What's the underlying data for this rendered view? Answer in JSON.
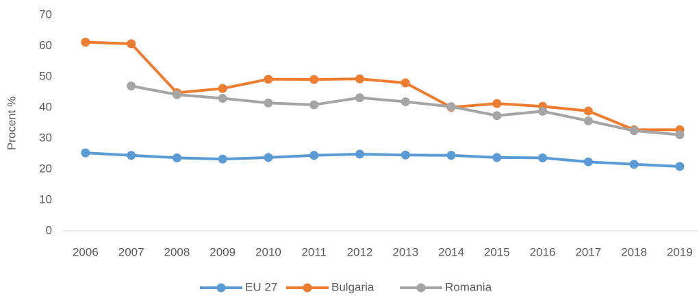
{
  "chart_data": {
    "type": "line",
    "ylabel": "Procent  %",
    "categories": [
      "2006",
      "2007",
      "2008",
      "2009",
      "2010",
      "2011",
      "2012",
      "2013",
      "2014",
      "2015",
      "2016",
      "2017",
      "2018",
      "2019"
    ],
    "series": [
      {
        "name": "EU 27",
        "color": "#5b9bd5",
        "values": [
          25.3,
          24.5,
          23.7,
          23.3,
          23.8,
          24.5,
          24.9,
          24.6,
          24.5,
          23.8,
          23.7,
          22.4,
          21.6,
          20.9
        ]
      },
      {
        "name": "Bulgaria",
        "color": "#ed7d31",
        "values": [
          61.2,
          60.7,
          44.8,
          46.2,
          49.2,
          49.1,
          49.3,
          48.0,
          40.1,
          41.3,
          40.4,
          38.9,
          32.8,
          32.8
        ]
      },
      {
        "name": "Romania",
        "color": "#a5a5a5",
        "values": [
          null,
          47.0,
          44.2,
          43.0,
          41.5,
          40.9,
          43.2,
          41.9,
          40.3,
          37.4,
          38.8,
          35.7,
          32.5,
          31.2
        ]
      }
    ],
    "ylim": [
      0,
      70
    ],
    "yticks": [
      0,
      10,
      20,
      30,
      40,
      50,
      60,
      70
    ],
    "grid": false,
    "legend": "bottom"
  }
}
